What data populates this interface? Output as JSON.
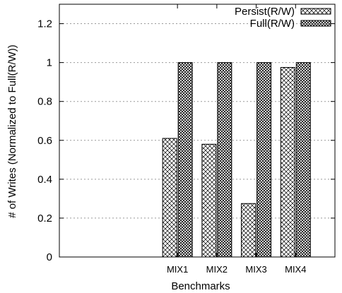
{
  "chart_data": {
    "type": "bar",
    "title": "",
    "xlabel": "Benchmarks",
    "ylabel": "# of Writes (Normalized to Full(R/W))",
    "categories": [
      "",
      "",
      "MIX1",
      "MIX2",
      "MIX3",
      "MIX4"
    ],
    "series": [
      {
        "name": "Persist(R/W)",
        "values": [
          null,
          null,
          0.61,
          0.58,
          0.275,
          0.975
        ]
      },
      {
        "name": "Full(R/W)",
        "values": [
          null,
          null,
          1.0,
          1.0,
          1.0,
          1.0
        ]
      }
    ],
    "ylim": [
      0,
      1.3
    ],
    "yticks": [
      "0",
      "0.2",
      "0.4",
      "0.6",
      "0.8",
      "1",
      "1.2"
    ],
    "grid": "horizontal-dotted",
    "legend_position": "top-right"
  }
}
